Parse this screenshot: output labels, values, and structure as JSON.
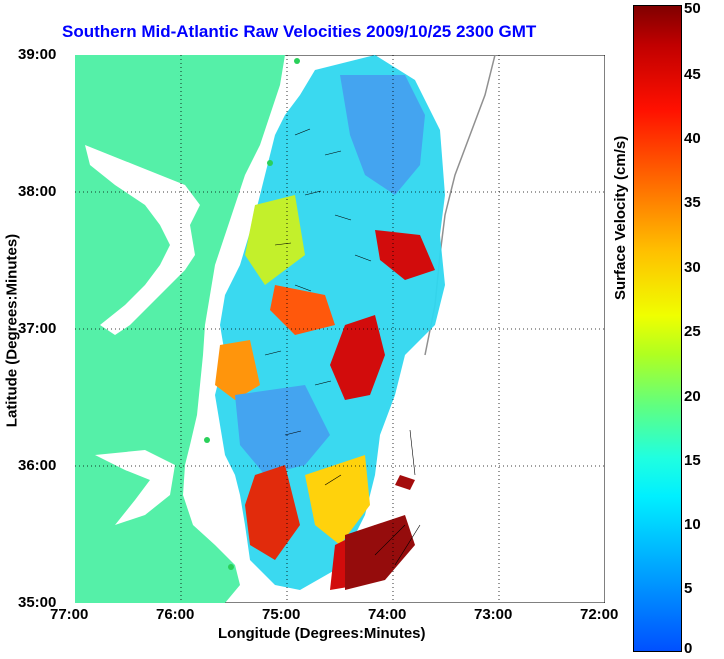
{
  "title": "Southern Mid-Atlantic Raw Velocities 2009/10/25 2300 GMT",
  "xlabel": "Longitude (Degrees:Minutes)",
  "ylabel": "Latitude (Degrees:Minutes)",
  "x_ticks": [
    "77:00",
    "76:00",
    "75:00",
    "74:00",
    "73:00",
    "72:00"
  ],
  "y_ticks": [
    "39:00",
    "38:00",
    "37:00",
    "36:00",
    "35:00"
  ],
  "colorbar": {
    "label": "Surface Velocity (cm/s)",
    "ticks": [
      "0",
      "5",
      "10",
      "15",
      "20",
      "25",
      "30",
      "35",
      "40",
      "45",
      "50"
    ],
    "min": 0,
    "max": 50
  },
  "colors": {
    "land": "#55f0a8",
    "title": "#0000ff",
    "coast_outline": "#909090"
  }
}
